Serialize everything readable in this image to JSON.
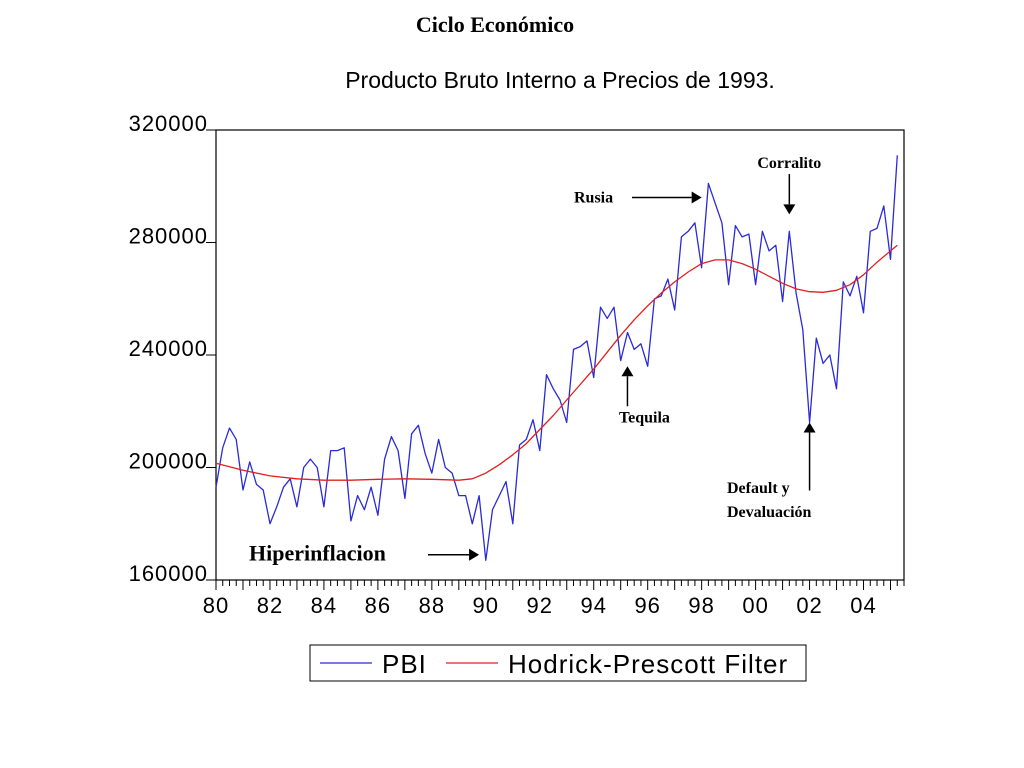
{
  "page": {
    "title": "Ciclo Económico"
  },
  "chart_data": {
    "type": "line",
    "title": "Producto Bruto Interno a Precios de 1993.",
    "xlabel": "",
    "ylabel": "",
    "ylim": [
      160000,
      320000
    ],
    "xlim": [
      1980,
      2005.5
    ],
    "yticks": [
      160000,
      200000,
      240000,
      280000,
      320000
    ],
    "xticks": [
      {
        "value": 1980,
        "label": "80"
      },
      {
        "value": 1982,
        "label": "82"
      },
      {
        "value": 1984,
        "label": "84"
      },
      {
        "value": 1986,
        "label": "86"
      },
      {
        "value": 1988,
        "label": "88"
      },
      {
        "value": 1990,
        "label": "90"
      },
      {
        "value": 1992,
        "label": "92"
      },
      {
        "value": 1994,
        "label": "94"
      },
      {
        "value": 1996,
        "label": "96"
      },
      {
        "value": 1998,
        "label": "98"
      },
      {
        "value": 2000,
        "label": "00"
      },
      {
        "value": 2002,
        "label": "02"
      },
      {
        "value": 2004,
        "label": "04"
      }
    ],
    "grid": false,
    "legend": "bottom",
    "x_start": 1980.0,
    "x_step": 0.25,
    "series": [
      {
        "name": "PBI",
        "color": "#2a2ad8",
        "values": [
          193000,
          207000,
          214000,
          210000,
          192000,
          202000,
          194000,
          192000,
          180000,
          186000,
          193000,
          196000,
          186000,
          200000,
          203000,
          200000,
          186000,
          206000,
          206000,
          207000,
          181000,
          190000,
          185000,
          193000,
          183000,
          203000,
          211000,
          206000,
          189000,
          212000,
          215000,
          205000,
          198000,
          210000,
          200000,
          198000,
          190000,
          190000,
          180000,
          190000,
          167000,
          185000,
          190000,
          195000,
          180000,
          208000,
          210000,
          217000,
          206000,
          233000,
          228000,
          224000,
          216000,
          242000,
          243000,
          245000,
          232000,
          257000,
          253000,
          257000,
          238000,
          248000,
          242000,
          244000,
          236000,
          260000,
          261000,
          267000,
          256000,
          282000,
          284000,
          287000,
          271000,
          301000,
          294000,
          287000,
          265000,
          286000,
          282000,
          283000,
          265000,
          284000,
          277000,
          279000,
          259000,
          284000,
          262000,
          249000,
          216000,
          246000,
          237000,
          240000,
          228000,
          266000,
          261000,
          268000,
          255000,
          284000,
          285000,
          293000,
          274000,
          311000
        ],
        "points": [
          [
            1980.0,
            193000
          ],
          [
            1980.25,
            207000
          ],
          [
            1980.5,
            214000
          ],
          [
            1980.75,
            210000
          ],
          [
            1981.0,
            192000
          ],
          [
            1981.25,
            202000
          ],
          [
            1981.5,
            194000
          ],
          [
            1981.75,
            192000
          ],
          [
            1982.0,
            180000
          ],
          [
            1982.25,
            186000
          ],
          [
            1982.5,
            193000
          ],
          [
            1982.75,
            196000
          ],
          [
            1983.0,
            186000
          ],
          [
            1983.25,
            200000
          ],
          [
            1983.5,
            203000
          ],
          [
            1983.75,
            200000
          ],
          [
            1984.0,
            186000
          ],
          [
            1984.25,
            206000
          ],
          [
            1984.5,
            206000
          ],
          [
            1984.75,
            207000
          ],
          [
            1985.0,
            181000
          ],
          [
            1985.25,
            190000
          ],
          [
            1985.5,
            185000
          ],
          [
            1985.75,
            193000
          ],
          [
            1986.0,
            183000
          ],
          [
            1986.25,
            203000
          ],
          [
            1986.5,
            211000
          ],
          [
            1986.75,
            206000
          ],
          [
            1987.0,
            189000
          ],
          [
            1987.25,
            212000
          ],
          [
            1987.5,
            215000
          ],
          [
            1987.75,
            205000
          ],
          [
            1988.0,
            198000
          ],
          [
            1988.25,
            210000
          ],
          [
            1988.5,
            200000
          ],
          [
            1988.75,
            198000
          ],
          [
            1989.0,
            190000
          ],
          [
            1989.25,
            190000
          ],
          [
            1989.5,
            180000
          ],
          [
            1989.75,
            190000
          ],
          [
            1990.0,
            167000
          ],
          [
            1990.25,
            185000
          ],
          [
            1990.5,
            190000
          ],
          [
            1990.75,
            195000
          ],
          [
            1991.0,
            180000
          ],
          [
            1991.25,
            208000
          ],
          [
            1991.5,
            210000
          ],
          [
            1991.75,
            217000
          ],
          [
            1992.0,
            206000
          ],
          [
            1992.25,
            233000
          ],
          [
            1992.5,
            228000
          ],
          [
            1992.75,
            224000
          ],
          [
            1993.0,
            216000
          ],
          [
            1993.25,
            242000
          ],
          [
            1993.5,
            243000
          ],
          [
            1993.75,
            245000
          ],
          [
            1994.0,
            232000
          ],
          [
            1994.25,
            257000
          ],
          [
            1994.5,
            253000
          ],
          [
            1994.75,
            257000
          ],
          [
            1995.0,
            238000
          ],
          [
            1995.25,
            248000
          ],
          [
            1995.5,
            242000
          ],
          [
            1995.75,
            244000
          ],
          [
            1996.0,
            236000
          ],
          [
            1996.25,
            260000
          ],
          [
            1996.5,
            261000
          ],
          [
            1996.75,
            267000
          ],
          [
            1997.0,
            256000
          ],
          [
            1997.25,
            282000
          ],
          [
            1997.5,
            284000
          ],
          [
            1997.75,
            287000
          ],
          [
            1998.0,
            271000
          ],
          [
            1998.25,
            301000
          ],
          [
            1998.5,
            294000
          ],
          [
            1998.75,
            287000
          ],
          [
            1999.0,
            265000
          ],
          [
            1999.25,
            286000
          ],
          [
            1999.5,
            282000
          ],
          [
            1999.75,
            283000
          ],
          [
            2000.0,
            265000
          ],
          [
            2000.25,
            284000
          ],
          [
            2000.5,
            277000
          ],
          [
            2000.75,
            279000
          ],
          [
            2001.0,
            259000
          ],
          [
            2001.25,
            284000
          ],
          [
            2001.5,
            262000
          ],
          [
            2001.75,
            249000
          ],
          [
            2002.0,
            216000
          ],
          [
            2002.25,
            246000
          ],
          [
            2002.5,
            237000
          ],
          [
            2002.75,
            240000
          ],
          [
            2003.0,
            228000
          ],
          [
            2003.25,
            266000
          ],
          [
            2003.5,
            261000
          ],
          [
            2003.75,
            268000
          ],
          [
            2004.0,
            255000
          ],
          [
            2004.25,
            284000
          ],
          [
            2004.5,
            285000
          ],
          [
            2004.75,
            293000
          ],
          [
            2005.0,
            274000
          ],
          [
            2005.25,
            311000
          ]
        ]
      },
      {
        "name": "Hodrick-Prescott Filter",
        "color": "#e02020",
        "points": [
          [
            1980.0,
            201500
          ],
          [
            1981.0,
            199000
          ],
          [
            1982.0,
            197000
          ],
          [
            1983.0,
            196000
          ],
          [
            1984.0,
            195500
          ],
          [
            1985.0,
            195500
          ],
          [
            1986.0,
            195800
          ],
          [
            1987.0,
            196000
          ],
          [
            1988.0,
            195800
          ],
          [
            1989.0,
            195500
          ],
          [
            1989.5,
            196000
          ],
          [
            1990.0,
            198000
          ],
          [
            1990.5,
            201000
          ],
          [
            1991.0,
            204500
          ],
          [
            1991.5,
            208500
          ],
          [
            1992.0,
            213500
          ],
          [
            1992.5,
            218500
          ],
          [
            1993.0,
            224000
          ],
          [
            1993.5,
            229500
          ],
          [
            1994.0,
            235000
          ],
          [
            1994.5,
            241000
          ],
          [
            1995.0,
            247000
          ],
          [
            1995.5,
            252500
          ],
          [
            1996.0,
            257500
          ],
          [
            1996.5,
            262000
          ],
          [
            1997.0,
            266000
          ],
          [
            1997.5,
            269500
          ],
          [
            1998.0,
            272500
          ],
          [
            1998.5,
            273800
          ],
          [
            1999.0,
            273800
          ],
          [
            1999.5,
            272500
          ],
          [
            2000.0,
            270500
          ],
          [
            2000.5,
            268000
          ],
          [
            2001.0,
            265500
          ],
          [
            2001.5,
            263500
          ],
          [
            2002.0,
            262500
          ],
          [
            2002.5,
            262300
          ],
          [
            2003.0,
            263000
          ],
          [
            2003.5,
            265000
          ],
          [
            2004.0,
            268500
          ],
          [
            2004.5,
            273000
          ],
          [
            2005.0,
            277000
          ],
          [
            2005.25,
            279000
          ]
        ]
      }
    ],
    "annotations": [
      {
        "text": "Corralito",
        "arrow": "down",
        "at_x": 2001.25,
        "at_y": 290000
      },
      {
        "text": "Rusia",
        "arrow": "right",
        "at_x": 1998.0,
        "at_y": 296000
      },
      {
        "text": "Tequila",
        "arrow": "up",
        "at_x": 1995.25,
        "at_y": 236000
      },
      {
        "text": "Default y",
        "text2": "Devaluación",
        "arrow": "up",
        "at_x": 2002.0,
        "at_y": 216000
      },
      {
        "text": "Hiperinflacion",
        "arrow": "right",
        "at_x": 1989.75,
        "at_y": 169000
      }
    ]
  }
}
